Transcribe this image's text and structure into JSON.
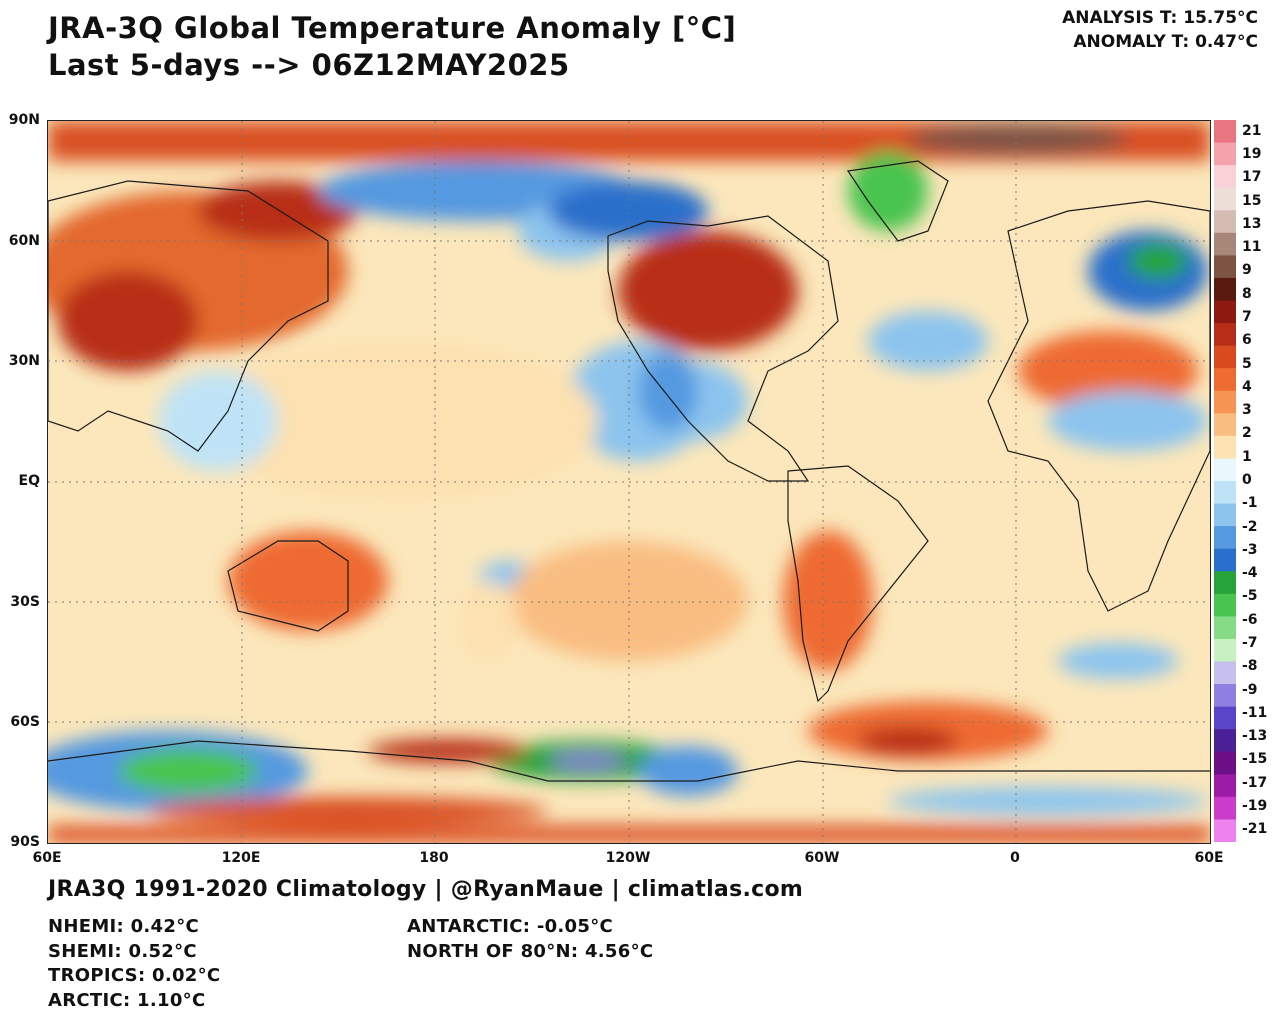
{
  "title": {
    "line1": "JRA-3Q Global Temperature Anomaly [°C]",
    "line2": "Last 5-days --> 06Z12MAY2025"
  },
  "header_right": {
    "analysis": "ANALYSIS T: 15.75°C",
    "anomaly": "ANOMALY T: 0.47°C"
  },
  "lat_labels": [
    "90N",
    "60N",
    "30N",
    "EQ",
    "30S",
    "60S",
    "90S"
  ],
  "lon_labels": [
    "60E",
    "120E",
    "180",
    "120W",
    "60W",
    "0",
    "60E"
  ],
  "colorbar": {
    "labels": [
      "21",
      "19",
      "17",
      "15",
      "13",
      "11",
      "9",
      "8",
      "7",
      "6",
      "5",
      "4",
      "3",
      "2",
      "1",
      "0",
      "-1",
      "-2",
      "-3",
      "-4",
      "-5",
      "-6",
      "-7",
      "-8",
      "-9",
      "-11",
      "-13",
      "-15",
      "-17",
      "-19",
      "-21"
    ],
    "colors": [
      "#e8757f",
      "#f4a3ad",
      "#f8d2d6",
      "#eeded8",
      "#d4bcb3",
      "#a98778",
      "#7d5444",
      "#5a1a10",
      "#8c1a10",
      "#b82d17",
      "#da4a1f",
      "#ee6b32",
      "#f69454",
      "#f9bd82",
      "#fde1b0",
      "#e9f6fb",
      "#bfe3f6",
      "#8cc4ee",
      "#5599e0",
      "#2a6fcb",
      "#26a43a",
      "#48c450",
      "#86dc86",
      "#c7f0c3",
      "#c7c0ef",
      "#8f7fe0",
      "#5a45c8",
      "#4b1f95",
      "#6c0f86",
      "#9d1ca7",
      "#cb3ccd",
      "#ee82ef"
    ]
  },
  "credits": "JRA3Q 1991-2020 Climatology | @RyanMaue | climatlas.com",
  "stats_left": [
    "NHEMI: 0.42°C",
    "SHEMI: 0.52°C",
    "TROPICS: 0.02°C",
    "ARCTIC: 1.10°C"
  ],
  "stats_right": [
    "ANTARCTIC: -0.05°C",
    "NORTH OF 80°N: 4.56°C"
  ]
}
